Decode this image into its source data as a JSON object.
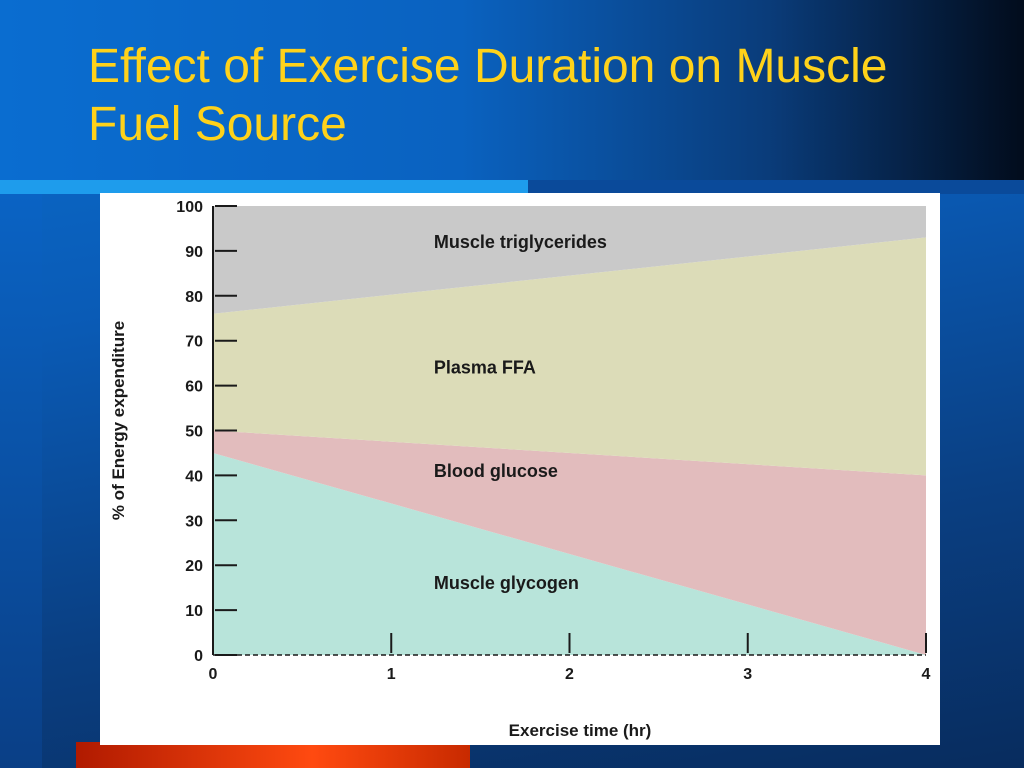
{
  "slide": {
    "title": "Effect of Exercise Duration on Muscle Fuel Source"
  },
  "colors": {
    "title_text": "#ffd21a",
    "muscle_triglycerides": "#c9c9c9",
    "plasma_ffa": "#dcdcb8",
    "blood_glucose": "#e2bcbd",
    "muscle_glycogen": "#b8e4da"
  },
  "chart_data": {
    "type": "area",
    "stacked": true,
    "x": [
      0,
      4
    ],
    "xticks": [
      "0",
      "1",
      "2",
      "3",
      "4"
    ],
    "yticks": [
      "0",
      "10",
      "20",
      "30",
      "40",
      "50",
      "60",
      "70",
      "80",
      "90",
      "100"
    ],
    "xlabel": "Exercise time (hr)",
    "ylabel": "% of Energy expenditure",
    "xlim": [
      0,
      4
    ],
    "ylim": [
      0,
      100
    ],
    "series": [
      {
        "name": "Muscle glycogen",
        "values": [
          45,
          0
        ]
      },
      {
        "name": "Blood glucose",
        "values": [
          5,
          40
        ]
      },
      {
        "name": "Plasma FFA",
        "values": [
          26,
          53
        ]
      },
      {
        "name": "Muscle triglycerides",
        "values": [
          24,
          7
        ]
      }
    ]
  }
}
